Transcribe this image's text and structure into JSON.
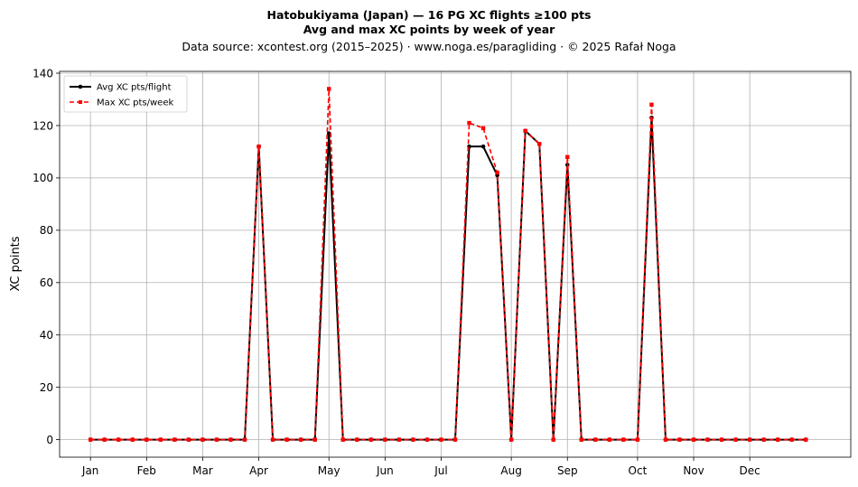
{
  "chart_data": {
    "type": "line",
    "title": "Hatobukiyama (Japan)  —  16 PG XC flights ≥100 pts",
    "subtitle": "Avg and max XC points by week of year",
    "source_line": "Data source: xcontest.org (2015–2025)  ·  www.noga.es/paragliding  ·  © 2025 Rafał Noga",
    "xlabel": "",
    "ylabel": "XC points",
    "x_ticks": [
      {
        "label": "Jan",
        "week": 1
      },
      {
        "label": "Feb",
        "week": 5
      },
      {
        "label": "Mar",
        "week": 9
      },
      {
        "label": "Apr",
        "week": 13
      },
      {
        "label": "May",
        "week": 18
      },
      {
        "label": "Jun",
        "week": 22
      },
      {
        "label": "Jul",
        "week": 26
      },
      {
        "label": "Aug",
        "week": 31
      },
      {
        "label": "Sep",
        "week": 35
      },
      {
        "label": "Oct",
        "week": 40
      },
      {
        "label": "Nov",
        "week": 44
      },
      {
        "label": "Dec",
        "week": 48
      }
    ],
    "xlim": [
      -1.2,
      55.2
    ],
    "ylim": [
      -6.7,
      140.7
    ],
    "y_ticks": [
      0,
      20,
      40,
      60,
      80,
      100,
      120,
      140
    ],
    "grid": true,
    "legend_position": "top-left",
    "x": [
      1,
      2,
      3,
      4,
      5,
      6,
      7,
      8,
      9,
      10,
      11,
      12,
      13,
      14,
      15,
      16,
      17,
      18,
      19,
      20,
      21,
      22,
      23,
      24,
      25,
      26,
      27,
      28,
      29,
      30,
      31,
      32,
      33,
      34,
      35,
      36,
      37,
      38,
      39,
      40,
      41,
      42,
      43,
      44,
      45,
      46,
      47,
      48,
      49,
      50,
      51,
      52
    ],
    "series": [
      {
        "name": "Avg XC pts/flight",
        "color": "#000000",
        "style": "solid",
        "marker": "circle",
        "values": [
          0,
          0,
          0,
          0,
          0,
          0,
          0,
          0,
          0,
          0,
          0,
          0,
          112,
          0,
          0,
          0,
          0,
          117,
          0,
          0,
          0,
          0,
          0,
          0,
          0,
          0,
          0,
          112,
          112,
          101,
          0,
          118,
          113,
          0,
          105,
          0,
          0,
          0,
          0,
          0,
          123,
          0,
          0,
          0,
          0,
          0,
          0,
          0,
          0,
          0,
          0,
          0
        ]
      },
      {
        "name": "Max XC pts/week",
        "color": "#ff0000",
        "style": "dashed",
        "marker": "square",
        "values": [
          0,
          0,
          0,
          0,
          0,
          0,
          0,
          0,
          0,
          0,
          0,
          0,
          112,
          0,
          0,
          0,
          0,
          134,
          0,
          0,
          0,
          0,
          0,
          0,
          0,
          0,
          0,
          121,
          119,
          102,
          0,
          118,
          113,
          0,
          108,
          0,
          0,
          0,
          0,
          0,
          128,
          0,
          0,
          0,
          0,
          0,
          0,
          0,
          0,
          0,
          0,
          0
        ]
      }
    ]
  }
}
